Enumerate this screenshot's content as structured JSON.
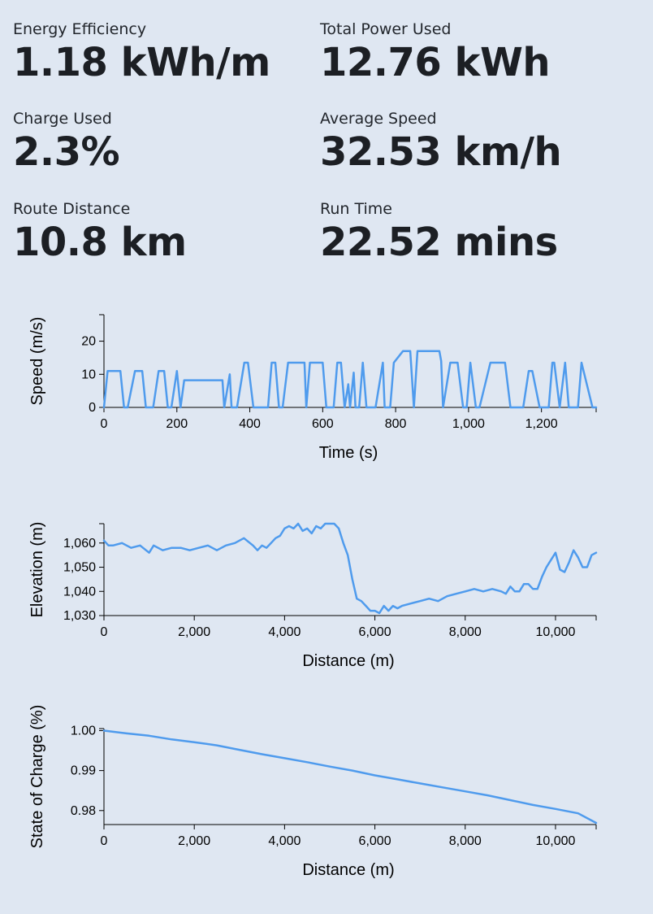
{
  "stats": [
    {
      "label": "Energy Efficiency",
      "value": "1.18 kWh/m"
    },
    {
      "label": "Total Power Used",
      "value": "12.76 kWh"
    },
    {
      "label": "Charge Used",
      "value": "2.3%"
    },
    {
      "label": "Average Speed",
      "value": "32.53 km/h"
    },
    {
      "label": "Route Distance",
      "value": "10.8 km"
    },
    {
      "label": "Run Time",
      "value": "22.52 mins"
    }
  ],
  "colors": {
    "background": "#dfe7f2",
    "series": "#4f9bed"
  },
  "chart_data": [
    {
      "type": "line",
      "xlabel": "Time (s)",
      "ylabel": "Speed (m/s)",
      "xlim": [
        0,
        1350
      ],
      "ylim": [
        0,
        28
      ],
      "xticks": [
        0,
        200,
        400,
        600,
        800,
        1000,
        1200
      ],
      "xtick_labels": [
        "0",
        "200",
        "400",
        "600",
        "800",
        "1,000",
        "1,200"
      ],
      "yticks": [
        0,
        10,
        20
      ],
      "ytick_labels": [
        "0",
        "10",
        "20"
      ],
      "grid": false,
      "series": [
        {
          "x": [
            0,
            10,
            45,
            55,
            65,
            85,
            105,
            115,
            135,
            150,
            165,
            175,
            185,
            200,
            210,
            220,
            225,
            325,
            330,
            345,
            350,
            355,
            365,
            385,
            395,
            410,
            415,
            450,
            460,
            470,
            480,
            490,
            505,
            520,
            550,
            555,
            565,
            600,
            610,
            630,
            640,
            650,
            660,
            670,
            675,
            685,
            690,
            700,
            710,
            720,
            730,
            745,
            765,
            770,
            785,
            795,
            820,
            840,
            850,
            860,
            880,
            920,
            925,
            930,
            950,
            970,
            985,
            995,
            1005,
            1020,
            1030,
            1060,
            1085,
            1095,
            1100,
            1115,
            1125,
            1150,
            1165,
            1175,
            1195,
            1220,
            1230,
            1235,
            1250,
            1265,
            1275,
            1300,
            1310,
            1340,
            1350
          ],
          "y": [
            0,
            11,
            11,
            0,
            0,
            11,
            11,
            0,
            0,
            11,
            11,
            0,
            0,
            11,
            0,
            8.2,
            8.2,
            8.2,
            0,
            10,
            0,
            0,
            0,
            13.5,
            13.5,
            0,
            0,
            0,
            13.5,
            13.5,
            0,
            0,
            13.5,
            13.5,
            13.5,
            0,
            13.5,
            13.5,
            0,
            0,
            13.5,
            13.5,
            0,
            7,
            0,
            10.5,
            0,
            0,
            13.5,
            0,
            0,
            0,
            13.5,
            0,
            0,
            13.5,
            17,
            17,
            0,
            17,
            17,
            17,
            14,
            0,
            13.5,
            13.5,
            0,
            0,
            13.5,
            0,
            0,
            13.5,
            13.5,
            13.5,
            13.5,
            0,
            0,
            0,
            11,
            11,
            0,
            0,
            13.5,
            13.5,
            0,
            13.5,
            0,
            0,
            13.5,
            0,
            0
          ]
        }
      ]
    },
    {
      "type": "line",
      "xlabel": "Distance (m)",
      "ylabel": "Elevation (m)",
      "xlim": [
        0,
        10900
      ],
      "ylim": [
        1030,
        1068
      ],
      "xticks": [
        0,
        2000,
        4000,
        6000,
        8000,
        10000
      ],
      "xtick_labels": [
        "0",
        "2,000",
        "4,000",
        "6,000",
        "8,000",
        "10,000"
      ],
      "yticks": [
        1030,
        1040,
        1050,
        1060
      ],
      "ytick_labels": [
        "1,030",
        "1,040",
        "1,050",
        "1,060"
      ],
      "grid": false,
      "series": [
        {
          "x": [
            0,
            100,
            200,
            400,
            600,
            800,
            1000,
            1100,
            1300,
            1500,
            1700,
            1900,
            2100,
            2300,
            2500,
            2700,
            2900,
            3100,
            3300,
            3400,
            3500,
            3600,
            3700,
            3800,
            3900,
            4000,
            4100,
            4200,
            4300,
            4400,
            4500,
            4600,
            4700,
            4800,
            4900,
            5000,
            5100,
            5200,
            5300,
            5400,
            5500,
            5600,
            5700,
            5800,
            5900,
            6000,
            6100,
            6200,
            6300,
            6400,
            6500,
            6600,
            6800,
            7000,
            7200,
            7400,
            7600,
            7800,
            8000,
            8200,
            8400,
            8600,
            8800,
            8900,
            9000,
            9100,
            9200,
            9300,
            9400,
            9500,
            9600,
            9700,
            9800,
            9900,
            10000,
            10100,
            10200,
            10300,
            10400,
            10500,
            10600,
            10700,
            10800,
            10900
          ],
          "y": [
            1061,
            1059,
            1059,
            1060,
            1058,
            1059,
            1056,
            1059,
            1057,
            1058,
            1058,
            1057,
            1058,
            1059,
            1057,
            1059,
            1060,
            1062,
            1059,
            1057,
            1059,
            1058,
            1060,
            1062,
            1063,
            1066,
            1067,
            1066,
            1068,
            1065,
            1066,
            1064,
            1067,
            1066,
            1068,
            1068,
            1068,
            1066,
            1060,
            1055,
            1045,
            1037,
            1036,
            1034,
            1032,
            1032,
            1031,
            1034,
            1032,
            1034,
            1033,
            1034,
            1035,
            1036,
            1037,
            1036,
            1038,
            1039,
            1040,
            1041,
            1040,
            1041,
            1040,
            1039,
            1042,
            1040,
            1040,
            1043,
            1043,
            1041,
            1041,
            1046,
            1050,
            1053,
            1056,
            1049,
            1048,
            1052,
            1057,
            1054,
            1050,
            1050,
            1055,
            1056
          ]
        }
      ]
    },
    {
      "type": "line",
      "xlabel": "Distance (m)",
      "ylabel": "State of Charge (%)",
      "xlim": [
        0,
        10900
      ],
      "ylim": [
        0.9765,
        1.0005
      ],
      "xticks": [
        0,
        2000,
        4000,
        6000,
        8000,
        10000
      ],
      "xtick_labels": [
        "0",
        "2,000",
        "4,000",
        "6,000",
        "8,000",
        "10,000"
      ],
      "yticks": [
        0.98,
        0.99,
        1.0
      ],
      "ytick_labels": [
        "0.98",
        "0.99",
        "1.00"
      ],
      "grid": false,
      "series": [
        {
          "x": [
            0,
            500,
            1000,
            1500,
            2000,
            2500,
            3000,
            3500,
            4000,
            4500,
            5000,
            5500,
            6000,
            6500,
            7000,
            7500,
            8000,
            8500,
            9000,
            9500,
            10000,
            10500,
            10900
          ],
          "y": [
            1.0,
            0.9993,
            0.9987,
            0.9978,
            0.9971,
            0.9963,
            0.9952,
            0.9941,
            0.9931,
            0.9921,
            0.991,
            0.99,
            0.9888,
            0.9878,
            0.9868,
            0.9858,
            0.9848,
            0.9838,
            0.9826,
            0.9814,
            0.9804,
            0.9793,
            0.9769
          ]
        }
      ]
    }
  ]
}
